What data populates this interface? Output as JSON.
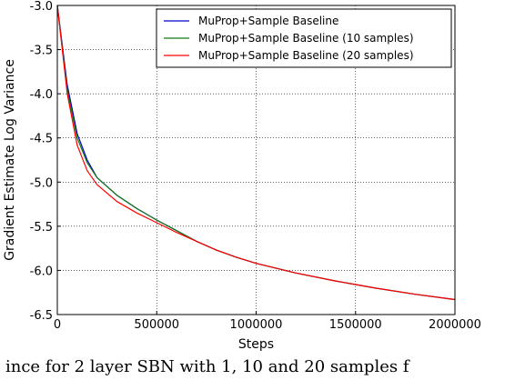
{
  "chart_data": {
    "type": "line",
    "xlabel": "Steps",
    "ylabel": "Gradient Estimate Log Variance",
    "xlim": [
      0,
      2000000
    ],
    "ylim": [
      -6.5,
      -3.0
    ],
    "x_ticks": [
      0,
      500000,
      1000000,
      1500000,
      2000000
    ],
    "x_tick_labels": [
      "0",
      "500000",
      "1000000",
      "1500000",
      "2000000"
    ],
    "y_ticks": [
      -3.0,
      -3.5,
      -4.0,
      -4.5,
      -5.0,
      -5.5,
      -6.0,
      -6.5
    ],
    "y_tick_labels": [
      "-3.0",
      "-3.5",
      "-4.0",
      "-4.5",
      "-5.0",
      "-5.5",
      "-6.0",
      "-6.5"
    ],
    "grid": true,
    "legend_position": "top-right",
    "series": [
      {
        "name": "MuProp+Sample Baseline",
        "color": "#0000cc",
        "x": [
          0,
          50000,
          100000,
          150000,
          200000,
          300000,
          400000,
          500000,
          600000,
          700000,
          800000,
          900000,
          1000000,
          1200000,
          1400000,
          1600000,
          1800000,
          2000000
        ],
        "y": [
          -3.0,
          -3.9,
          -4.45,
          -4.75,
          -4.95,
          -5.15,
          -5.3,
          -5.43,
          -5.55,
          -5.67,
          -5.77,
          -5.85,
          -5.92,
          -6.03,
          -6.12,
          -6.2,
          -6.27,
          -6.33
        ]
      },
      {
        "name": "MuProp+Sample Baseline (10 samples)",
        "color": "#117711",
        "x": [
          0,
          50000,
          100000,
          150000,
          200000,
          300000,
          400000,
          500000,
          600000,
          700000,
          800000,
          900000,
          1000000,
          1200000,
          1400000,
          1600000,
          1800000,
          2000000
        ],
        "y": [
          -3.0,
          -3.95,
          -4.5,
          -4.78,
          -4.95,
          -5.15,
          -5.3,
          -5.43,
          -5.55,
          -5.67,
          -5.77,
          -5.85,
          -5.92,
          -6.03,
          -6.12,
          -6.2,
          -6.27,
          -6.33
        ]
      },
      {
        "name": "MuProp+Sample Baseline (20 samples)",
        "color": "#ff0000",
        "x": [
          0,
          50000,
          100000,
          150000,
          200000,
          300000,
          400000,
          500000,
          600000,
          700000,
          800000,
          900000,
          1000000,
          1200000,
          1400000,
          1600000,
          1800000,
          2000000
        ],
        "y": [
          -3.0,
          -4.0,
          -4.58,
          -4.87,
          -5.03,
          -5.22,
          -5.35,
          -5.46,
          -5.57,
          -5.67,
          -5.77,
          -5.85,
          -5.92,
          -6.03,
          -6.12,
          -6.2,
          -6.27,
          -6.33
        ]
      }
    ]
  },
  "caption_text": "ince for 2 layer SBN with 1, 10 and 20 samples f"
}
